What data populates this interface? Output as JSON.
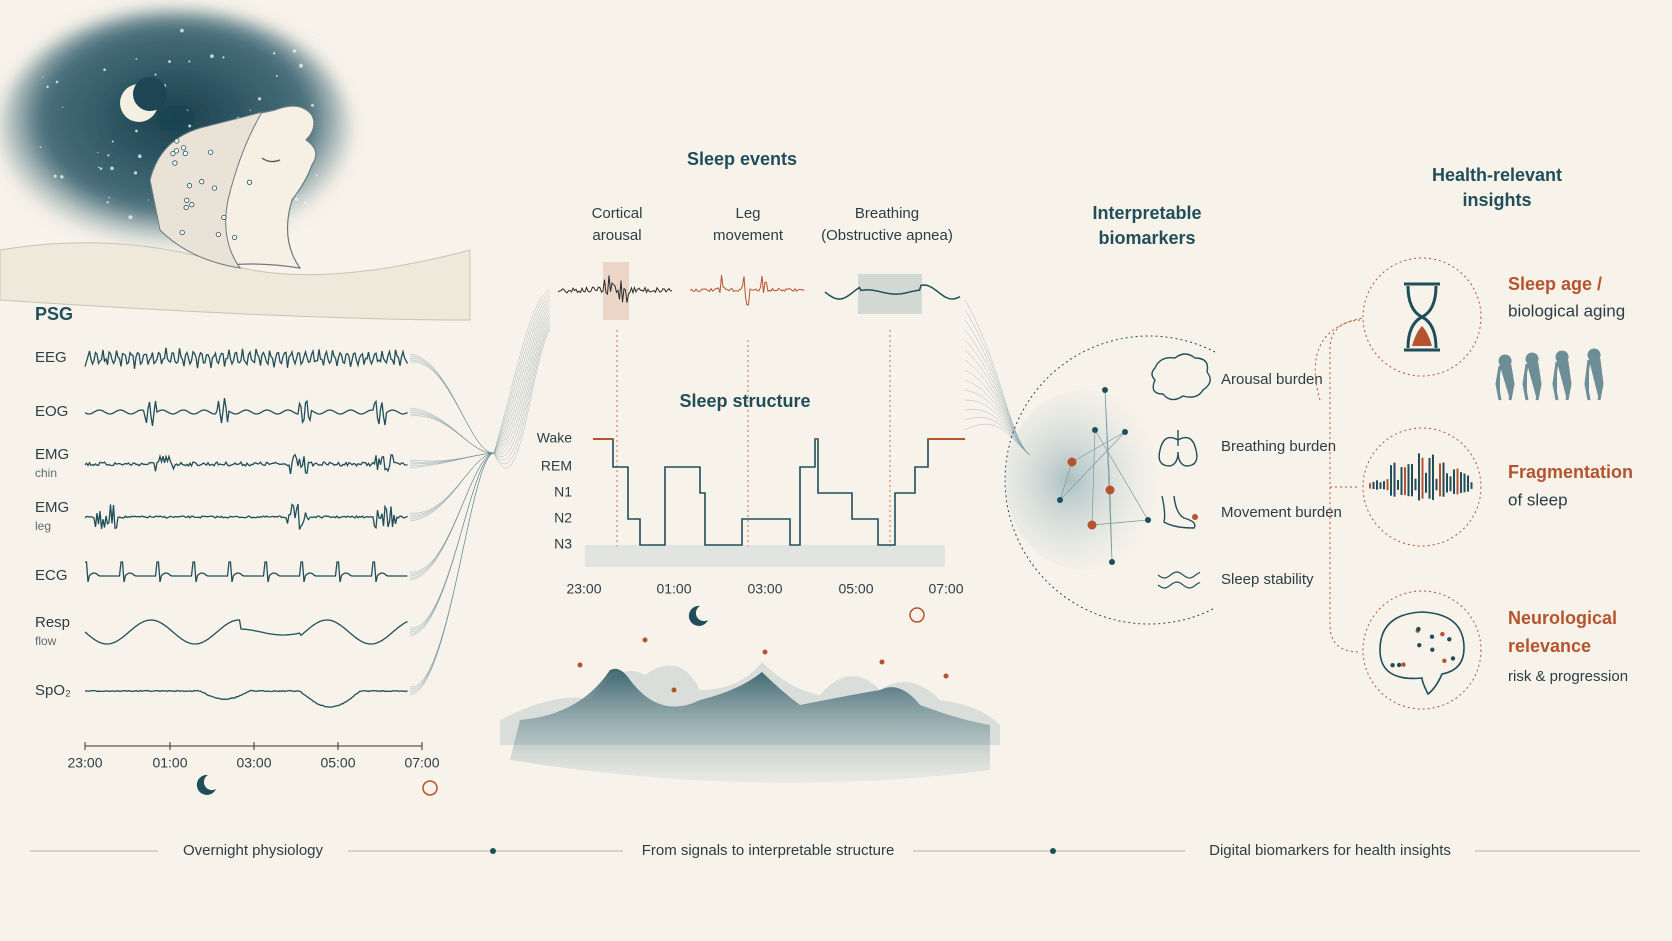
{
  "psg": {
    "title": "PSG",
    "channels": [
      {
        "label": "EEG"
      },
      {
        "label": "EOG"
      },
      {
        "label": "EMG",
        "sublabel": "chin"
      },
      {
        "label": "EMG",
        "sublabel": "leg"
      },
      {
        "label": "ECG"
      },
      {
        "label": "Resp",
        "sublabel": "flow"
      },
      {
        "label": "SpO₂"
      }
    ],
    "times": [
      "23:00",
      "01:00",
      "03:00",
      "05:00",
      "07:00"
    ]
  },
  "sleep_events": {
    "title": "Sleep events",
    "events": [
      {
        "label_lines": [
          "Cortical",
          "arousal"
        ]
      },
      {
        "label_lines": [
          "Leg",
          "movement"
        ]
      },
      {
        "label_lines": [
          "Breathing",
          "(Obstructive apnea)"
        ]
      }
    ]
  },
  "sleep_structure": {
    "title": "Sleep structure",
    "stages": [
      "Wake",
      "REM",
      "N1",
      "N2",
      "N3"
    ],
    "times": [
      "23:00",
      "01:00",
      "03:00",
      "05:00",
      "07:00"
    ]
  },
  "biomarkers": {
    "title_lines": [
      "Interpretable",
      "biomarkers"
    ],
    "items": [
      "Arousal burden",
      "Breathing burden",
      "Movement burden",
      "Sleep stability"
    ]
  },
  "insights": {
    "title_lines": [
      "Health-relevant",
      "insights"
    ],
    "items": [
      {
        "heading_lines": [
          "Sleep age /"
        ],
        "detail_lines": [
          "biological aging"
        ]
      },
      {
        "heading_lines": [
          "Fragmentation"
        ],
        "detail_lines": [
          "of sleep"
        ]
      },
      {
        "heading_lines": [
          "Neurological",
          "relevance"
        ],
        "detail_lines": [
          "risk & progression"
        ]
      }
    ]
  },
  "footer": [
    "Overnight physiology",
    "From signals to interpretable structure",
    "Digital biomarkers for health insights"
  ]
}
